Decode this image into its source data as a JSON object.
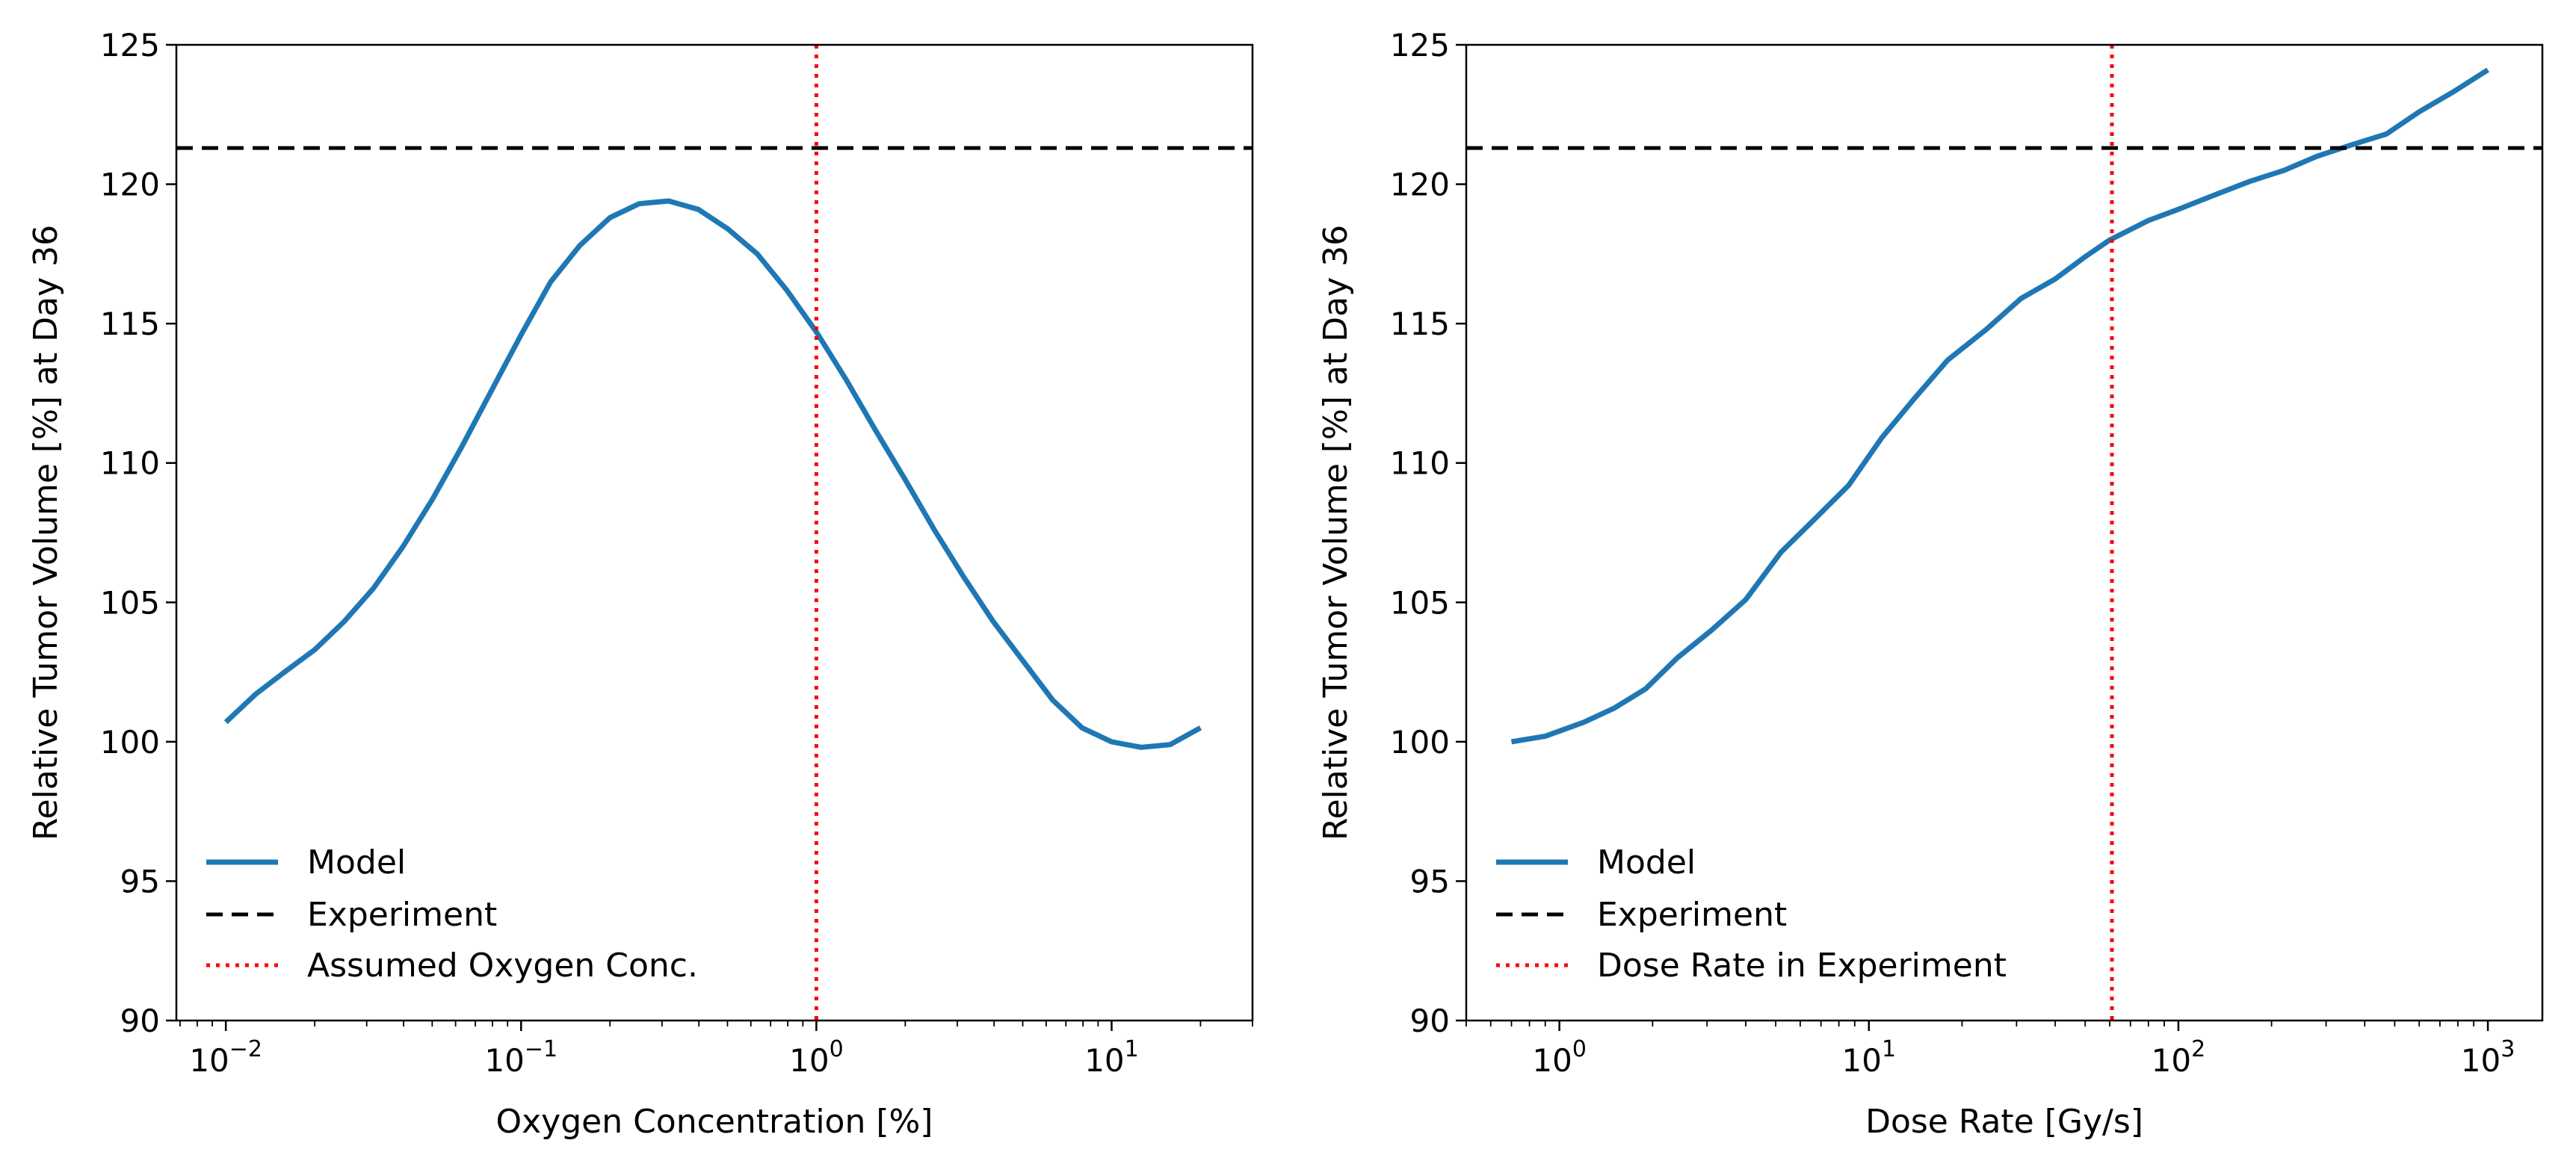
{
  "chart_data": [
    {
      "type": "line",
      "x_scale": "log",
      "xlabel": "Oxygen Concentration [%]",
      "ylabel": "Relative Tumor Volume [%] at Day 36",
      "xlim": [
        0.0068,
        30
      ],
      "ylim": [
        90,
        125
      ],
      "x_ticks": [
        {
          "value": 0.01,
          "base": "10",
          "exp": "−2"
        },
        {
          "value": 0.1,
          "base": "10",
          "exp": "−1"
        },
        {
          "value": 1,
          "base": "10",
          "exp": "0"
        },
        {
          "value": 10,
          "base": "10",
          "exp": "1"
        }
      ],
      "y_ticks": [
        90,
        95,
        100,
        105,
        110,
        115,
        120,
        125
      ],
      "grid": false,
      "legend_position": "lower-left",
      "series": [
        {
          "name": "Model",
          "style": "solid",
          "color": "#1f77b4",
          "x": [
            0.01,
            0.0126,
            0.0158,
            0.02,
            0.0251,
            0.0316,
            0.0398,
            0.0501,
            0.0631,
            0.0794,
            0.1,
            0.126,
            0.158,
            0.2,
            0.251,
            0.316,
            0.398,
            0.501,
            0.631,
            0.794,
            1.0,
            1.26,
            1.58,
            2.0,
            2.51,
            3.16,
            3.98,
            5.01,
            6.31,
            7.94,
            10.0,
            12.6,
            15.8,
            20.0
          ],
          "y": [
            100.7,
            101.7,
            102.5,
            103.3,
            104.3,
            105.5,
            107.0,
            108.7,
            110.6,
            112.6,
            114.6,
            116.5,
            117.8,
            118.8,
            119.3,
            119.4,
            119.1,
            118.4,
            117.5,
            116.2,
            114.7,
            113.0,
            111.2,
            109.4,
            107.6,
            105.9,
            104.3,
            102.9,
            101.5,
            100.5,
            100.0,
            99.8,
            99.9,
            100.5
          ]
        },
        {
          "name": "Experiment",
          "style": "dashed",
          "color": "#000000",
          "hline": 121.3
        },
        {
          "name": "Assumed Oxygen Conc.",
          "style": "dotted",
          "color": "#ff0000",
          "vline": 1
        }
      ]
    },
    {
      "type": "line",
      "x_scale": "log",
      "xlabel": "Dose Rate [Gy/s]",
      "ylabel": "Relative Tumor Volume [%] at Day 36",
      "xlim": [
        0.5,
        1500
      ],
      "ylim": [
        90,
        125
      ],
      "x_ticks": [
        {
          "value": 1,
          "base": "10",
          "exp": "0"
        },
        {
          "value": 10,
          "base": "10",
          "exp": "1"
        },
        {
          "value": 100,
          "base": "10",
          "exp": "2"
        },
        {
          "value": 1000,
          "base": "10",
          "exp": "3"
        }
      ],
      "y_ticks": [
        90,
        95,
        100,
        105,
        110,
        115,
        120,
        125
      ],
      "grid": false,
      "legend_position": "lower-left",
      "series": [
        {
          "name": "Model",
          "style": "solid",
          "color": "#1f77b4",
          "x": [
            0.7,
            0.9,
            1.2,
            1.5,
            1.9,
            2.4,
            3.1,
            4.0,
            5.2,
            6.7,
            8.6,
            11,
            14,
            18,
            24,
            31,
            40,
            50,
            60,
            80,
            100,
            130,
            170,
            220,
            280,
            360,
            470,
            600,
            770,
            1000
          ],
          "y": [
            100.0,
            100.2,
            100.7,
            101.2,
            101.9,
            103.0,
            104.0,
            105.1,
            106.8,
            108.0,
            109.2,
            110.9,
            112.3,
            113.7,
            114.8,
            115.9,
            116.6,
            117.4,
            118.0,
            118.7,
            119.1,
            119.6,
            120.1,
            120.5,
            121.0,
            121.4,
            121.8,
            122.6,
            123.3,
            124.1
          ]
        },
        {
          "name": "Experiment",
          "style": "dashed",
          "color": "#000000",
          "hline": 121.3
        },
        {
          "name": "Dose Rate in Experiment",
          "style": "dotted",
          "color": "#ff0000",
          "vline": 61
        }
      ]
    }
  ]
}
